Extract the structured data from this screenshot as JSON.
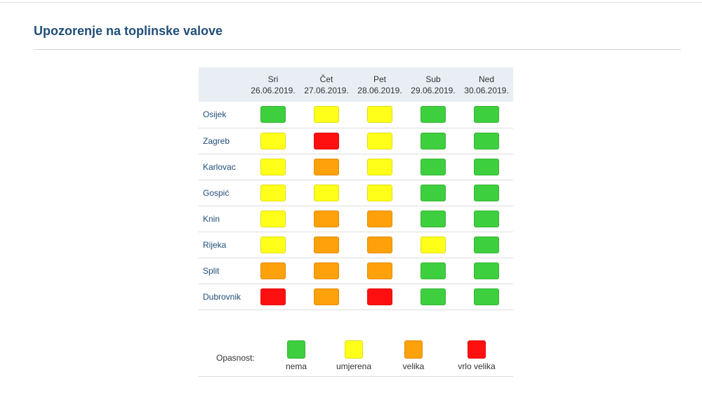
{
  "page": {
    "title": "Upozorenje na toplinske valove"
  },
  "colors": {
    "nema": "#3ecf3e",
    "umjerena": "#ffff19",
    "velika": "#ffa10a",
    "vrlo_velika": "#ff1010"
  },
  "days": [
    {
      "name": "Sri",
      "date": "26.06.2019."
    },
    {
      "name": "Čet",
      "date": "27.06.2019."
    },
    {
      "name": "Pet",
      "date": "28.06.2019."
    },
    {
      "name": "Sub",
      "date": "29.06.2019."
    },
    {
      "name": "Ned",
      "date": "30.06.2019."
    }
  ],
  "cities": [
    {
      "name": "Osijek",
      "levels": [
        "nema",
        "umjerena",
        "umjerena",
        "nema",
        "nema"
      ]
    },
    {
      "name": "Zagreb",
      "levels": [
        "umjerena",
        "vrlo_velika",
        "umjerena",
        "nema",
        "nema"
      ]
    },
    {
      "name": "Karlovac",
      "levels": [
        "umjerena",
        "velika",
        "umjerena",
        "nema",
        "nema"
      ]
    },
    {
      "name": "Gospić",
      "levels": [
        "umjerena",
        "umjerena",
        "umjerena",
        "nema",
        "nema"
      ]
    },
    {
      "name": "Knin",
      "levels": [
        "umjerena",
        "velika",
        "velika",
        "nema",
        "nema"
      ]
    },
    {
      "name": "Rijeka",
      "levels": [
        "umjerena",
        "velika",
        "velika",
        "umjerena",
        "nema"
      ]
    },
    {
      "name": "Split",
      "levels": [
        "velika",
        "velika",
        "velika",
        "nema",
        "nema"
      ]
    },
    {
      "name": "Dubrovnik",
      "levels": [
        "vrlo_velika",
        "velika",
        "vrlo_velika",
        "nema",
        "nema"
      ]
    }
  ],
  "legend": {
    "label": "Opasnost:",
    "items": [
      {
        "key": "nema",
        "label": "nema"
      },
      {
        "key": "umjerena",
        "label": "umjerena"
      },
      {
        "key": "velika",
        "label": "velika"
      },
      {
        "key": "vrlo_velika",
        "label": "vrlo velika"
      }
    ]
  }
}
